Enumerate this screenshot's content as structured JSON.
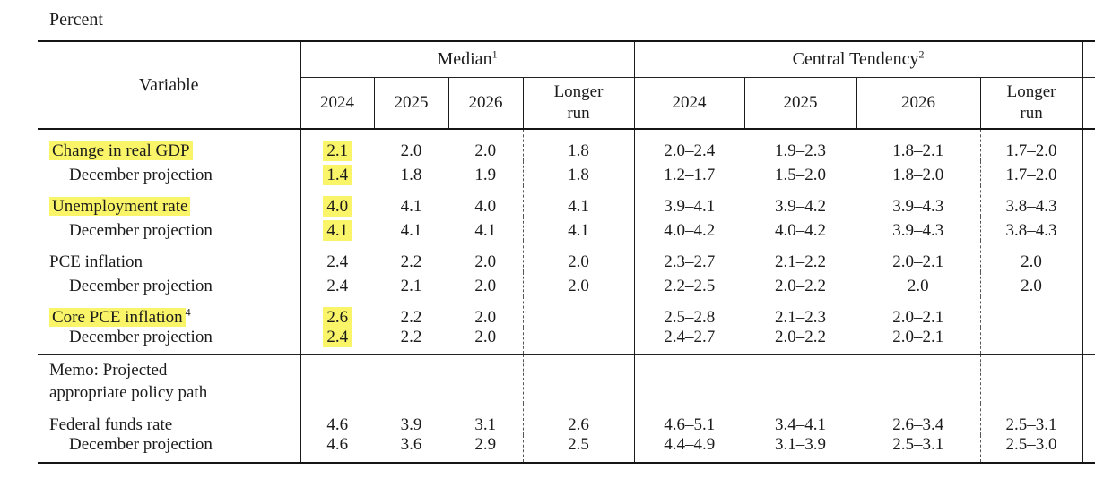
{
  "unit_label": "Percent",
  "colors": {
    "highlight": "#f9f468",
    "text": "#1b1b1b",
    "rule": "#151515"
  },
  "header": {
    "variable_label": "Variable",
    "groups": [
      {
        "label": "Median",
        "sup": "1",
        "cols": [
          "2024",
          "2025",
          "2026",
          "Longer\nrun"
        ]
      },
      {
        "label": "Central Tendency",
        "sup": "2",
        "cols": [
          "2024",
          "2025",
          "2026",
          "Longer\nrun"
        ]
      }
    ]
  },
  "rows": [
    {
      "label": "Change in real GDP",
      "sup": "",
      "indent": false,
      "label_highlighted": true,
      "median": [
        "2.1",
        "2.0",
        "2.0",
        "1.8"
      ],
      "median_2024_highlighted": true,
      "central_tendency": [
        "2.0–2.4",
        "1.9–2.3",
        "1.8–2.1",
        "1.7–2.0"
      ]
    },
    {
      "label": "December projection",
      "sup": "",
      "indent": true,
      "label_highlighted": false,
      "median": [
        "1.4",
        "1.8",
        "1.9",
        "1.8"
      ],
      "median_2024_highlighted": true,
      "central_tendency": [
        "1.2–1.7",
        "1.5–2.0",
        "1.8–2.0",
        "1.7–2.0"
      ]
    },
    {
      "label": "Unemployment rate",
      "sup": "",
      "indent": false,
      "label_highlighted": true,
      "median": [
        "4.0",
        "4.1",
        "4.0",
        "4.1"
      ],
      "median_2024_highlighted": true,
      "central_tendency": [
        "3.9–4.1",
        "3.9–4.2",
        "3.9–4.3",
        "3.8–4.3"
      ]
    },
    {
      "label": "December projection",
      "sup": "",
      "indent": true,
      "label_highlighted": false,
      "median": [
        "4.1",
        "4.1",
        "4.1",
        "4.1"
      ],
      "median_2024_highlighted": true,
      "central_tendency": [
        "4.0–4.2",
        "4.0–4.2",
        "3.9–4.3",
        "3.8–4.3"
      ]
    },
    {
      "label": "PCE inflation",
      "sup": "",
      "indent": false,
      "label_highlighted": false,
      "median": [
        "2.4",
        "2.2",
        "2.0",
        "2.0"
      ],
      "median_2024_highlighted": false,
      "central_tendency": [
        "2.3–2.7",
        "2.1–2.2",
        "2.0–2.1",
        "2.0"
      ]
    },
    {
      "label": "December projection",
      "sup": "",
      "indent": true,
      "label_highlighted": false,
      "median": [
        "2.4",
        "2.1",
        "2.0",
        "2.0"
      ],
      "median_2024_highlighted": false,
      "central_tendency": [
        "2.2–2.5",
        "2.0–2.2",
        "2.0",
        "2.0"
      ]
    },
    {
      "label": "Core PCE inflation",
      "sup": "4",
      "indent": false,
      "label_highlighted": true,
      "median": [
        "2.6",
        "2.2",
        "2.0",
        ""
      ],
      "median_2024_highlighted": true,
      "central_tendency": [
        "2.5–2.8",
        "2.1–2.3",
        "2.0–2.1",
        ""
      ]
    },
    {
      "label": "December projection",
      "sup": "",
      "indent": true,
      "label_highlighted": false,
      "median": [
        "2.4",
        "2.2",
        "2.0",
        ""
      ],
      "median_2024_highlighted": true,
      "central_tendency": [
        "2.4–2.7",
        "2.0–2.2",
        "2.0–2.1",
        ""
      ]
    },
    {
      "label": "Federal funds rate",
      "sup": "",
      "indent": false,
      "label_highlighted": false,
      "median": [
        "4.6",
        "3.9",
        "3.1",
        "2.6"
      ],
      "median_2024_highlighted": false,
      "central_tendency": [
        "4.6–5.1",
        "3.4–4.1",
        "2.6–3.4",
        "2.5–3.1"
      ]
    },
    {
      "label": "December projection",
      "sup": "",
      "indent": true,
      "label_highlighted": false,
      "median": [
        "4.6",
        "3.6",
        "2.9",
        "2.5"
      ],
      "median_2024_highlighted": false,
      "central_tendency": [
        "4.4–4.9",
        "3.1–3.9",
        "2.5–3.1",
        "2.5–3.0"
      ]
    }
  ],
  "memo": {
    "label": "Memo: Projected\nappropriate policy path"
  }
}
